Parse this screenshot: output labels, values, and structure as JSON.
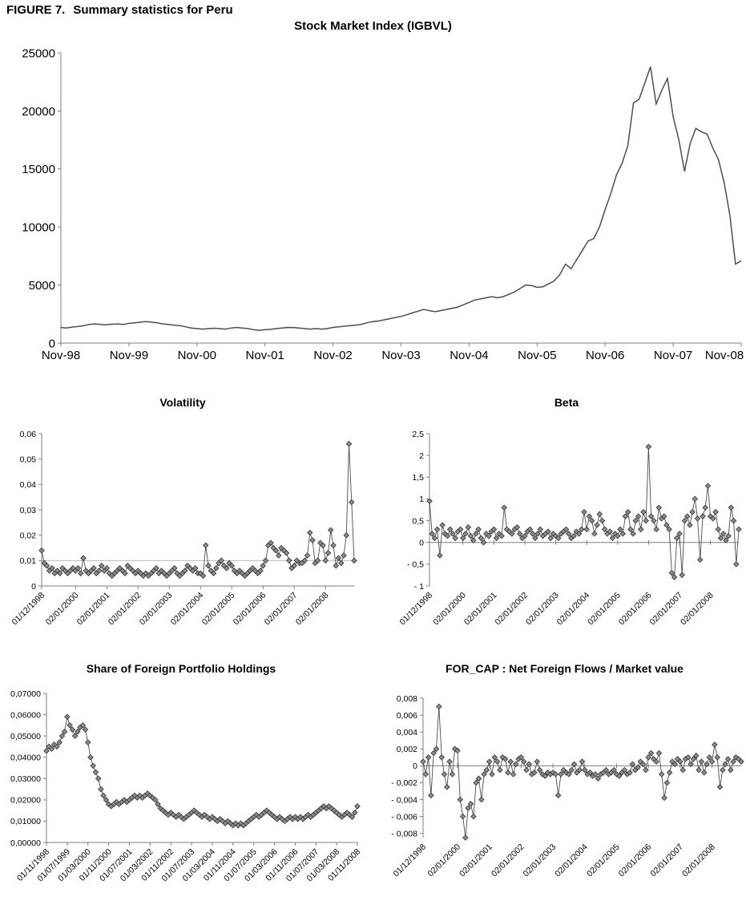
{
  "figure": {
    "caption_label": "FIGURE 7.",
    "caption_title": "Summary statistics for Peru"
  },
  "colors": {
    "line": "#4d4d4d",
    "marker_fill": "#8c8c8c",
    "marker_stroke": "#333333",
    "axis": "#7f7f7f",
    "gridline": "#b0b0b0",
    "text": "#000000"
  },
  "chart_data": [
    {
      "id": "stock-market-index",
      "type": "line",
      "title": "Stock Market Index (IGBVL)",
      "marker": "none",
      "ylim": [
        0,
        25000
      ],
      "y_ticks": [
        0,
        5000,
        10000,
        15000,
        20000,
        25000
      ],
      "y_tick_labels": [
        "0",
        "5000",
        "10000",
        "15000",
        "20000",
        "25000"
      ],
      "x_tick_labels": [
        "Nov-98",
        "Nov-99",
        "Nov-00",
        "Nov-01",
        "Nov-02",
        "Nov-03",
        "Nov-04",
        "Nov-05",
        "Nov-06",
        "Nov-07",
        "Nov-08"
      ],
      "x_tick_indices": [
        0,
        12,
        24,
        36,
        48,
        60,
        72,
        84,
        96,
        108,
        120
      ],
      "values": [
        1350,
        1300,
        1380,
        1420,
        1500,
        1600,
        1650,
        1600,
        1580,
        1620,
        1650,
        1600,
        1700,
        1750,
        1800,
        1850,
        1800,
        1750,
        1650,
        1600,
        1550,
        1500,
        1400,
        1300,
        1250,
        1200,
        1250,
        1280,
        1250,
        1200,
        1300,
        1350,
        1300,
        1250,
        1150,
        1100,
        1150,
        1180,
        1250,
        1300,
        1350,
        1340,
        1300,
        1250,
        1200,
        1250,
        1200,
        1250,
        1350,
        1400,
        1450,
        1500,
        1550,
        1620,
        1750,
        1850,
        1900,
        2000,
        2100,
        2200,
        2300,
        2435,
        2600,
        2750,
        2900,
        2800,
        2700,
        2800,
        2900,
        3000,
        3100,
        3300,
        3500,
        3710,
        3800,
        3900,
        4000,
        3900,
        4000,
        4200,
        4400,
        4700,
        5000,
        4950,
        4800,
        4850,
        5100,
        5350,
        5900,
        6800,
        6400,
        7200,
        8000,
        8800,
        9000,
        10000,
        11500,
        12884,
        14500,
        15500,
        17000,
        20700,
        21000,
        22400,
        23800,
        20600,
        21800,
        22800,
        19500,
        17500,
        14800,
        17200,
        18500,
        18200,
        18000,
        16800,
        15800,
        13800,
        11000,
        6800,
        7100
      ]
    },
    {
      "id": "volatility",
      "type": "line",
      "title": "Volatility",
      "marker": "diamond",
      "ylim": [
        0,
        0.06
      ],
      "gridlines": [
        0.01
      ],
      "y_ticks": [
        0,
        0.01,
        0.02,
        0.03,
        0.04,
        0.05,
        0.06
      ],
      "y_tick_labels": [
        "0",
        "0,01",
        "0,02",
        "0,03",
        "0,04",
        "0,05",
        "0,06"
      ],
      "x_tick_labels": [
        "01/12/1998",
        "02/01/2000",
        "02/01/2001",
        "02/01/2002",
        "02/01/2003",
        "02/01/2004",
        "02/01/2005",
        "02/01/2006",
        "02/01/2007",
        "02/01/2008"
      ],
      "x_tick_indices": [
        0,
        13,
        25,
        37,
        49,
        61,
        73,
        85,
        97,
        109
      ],
      "values": [
        0.014,
        0.009,
        0.008,
        0.006,
        0.007,
        0.005,
        0.006,
        0.005,
        0.007,
        0.006,
        0.005,
        0.006,
        0.007,
        0.006,
        0.007,
        0.005,
        0.011,
        0.006,
        0.005,
        0.006,
        0.007,
        0.005,
        0.006,
        0.008,
        0.006,
        0.007,
        0.005,
        0.004,
        0.005,
        0.006,
        0.007,
        0.006,
        0.005,
        0.008,
        0.007,
        0.006,
        0.005,
        0.006,
        0.005,
        0.004,
        0.005,
        0.004,
        0.005,
        0.006,
        0.007,
        0.005,
        0.006,
        0.005,
        0.004,
        0.005,
        0.006,
        0.007,
        0.005,
        0.004,
        0.005,
        0.006,
        0.008,
        0.007,
        0.006,
        0.007,
        0.005,
        0.005,
        0.004,
        0.016,
        0.008,
        0.006,
        0.005,
        0.007,
        0.009,
        0.01,
        0.008,
        0.007,
        0.009,
        0.008,
        0.006,
        0.005,
        0.006,
        0.005,
        0.004,
        0.005,
        0.006,
        0.007,
        0.006,
        0.005,
        0.006,
        0.008,
        0.01,
        0.016,
        0.017,
        0.015,
        0.014,
        0.012,
        0.015,
        0.014,
        0.013,
        0.01,
        0.007,
        0.008,
        0.01,
        0.009,
        0.009,
        0.01,
        0.012,
        0.021,
        0.018,
        0.009,
        0.01,
        0.017,
        0.016,
        0.01,
        0.013,
        0.022,
        0.016,
        0.008,
        0.011,
        0.009,
        0.012,
        0.02,
        0.056,
        0.033,
        0.01
      ]
    },
    {
      "id": "beta",
      "type": "line",
      "title": "Beta",
      "marker": "diamond",
      "ylim": [
        -1,
        2.5
      ],
      "x_axis_at": 0,
      "y_ticks": [
        -1,
        -0.5,
        0,
        0.5,
        1,
        1.5,
        2,
        2.5
      ],
      "y_tick_labels": [
        "- 1",
        "- 0,5",
        "0",
        "0,5",
        "1",
        "1,5",
        "2",
        "2,5"
      ],
      "x_tick_labels": [
        "01/12/1998",
        "02/01/2000",
        "02/01/2001",
        "02/01/2002",
        "02/01/2003",
        "02/01/2004",
        "02/01/2005",
        "02/01/2006",
        "02/01/2007",
        "02/01/2008"
      ],
      "x_tick_indices": [
        0,
        13,
        25,
        37,
        49,
        61,
        73,
        85,
        97,
        109
      ],
      "values": [
        0.95,
        0.2,
        0.1,
        0.3,
        -0.3,
        0.4,
        0.2,
        0.15,
        0.3,
        0.2,
        0.1,
        0.25,
        0.3,
        0.1,
        0.2,
        0.35,
        0.15,
        0.05,
        0.2,
        0.3,
        0.1,
        0.0,
        0.2,
        0.15,
        0.25,
        0.3,
        0.1,
        0.2,
        0.15,
        0.8,
        0.3,
        0.25,
        0.2,
        0.3,
        0.35,
        0.2,
        0.1,
        0.15,
        0.25,
        0.3,
        0.2,
        0.1,
        0.2,
        0.3,
        0.15,
        0.2,
        0.25,
        0.1,
        0.2,
        0.15,
        0.1,
        0.2,
        0.25,
        0.3,
        0.2,
        0.1,
        0.15,
        0.25,
        0.2,
        0.3,
        0.7,
        0.3,
        0.6,
        0.5,
        0.2,
        0.4,
        0.65,
        0.5,
        0.3,
        0.2,
        0.25,
        0.1,
        0.2,
        0.15,
        0.3,
        0.2,
        0.6,
        0.7,
        0.3,
        0.2,
        0.5,
        0.6,
        0.3,
        0.7,
        0.5,
        2.2,
        0.6,
        0.5,
        0.3,
        0.8,
        0.55,
        0.6,
        0.4,
        0.3,
        -0.7,
        -0.8,
        0.1,
        0.2,
        -0.75,
        0.5,
        0.6,
        0.4,
        0.7,
        1.0,
        0.55,
        -0.4,
        0.6,
        0.8,
        1.3,
        0.6,
        0.55,
        0.7,
        0.3,
        0.1,
        0.2,
        0.05,
        0.15,
        0.8,
        0.5,
        -0.5,
        0.3
      ]
    },
    {
      "id": "foreign-portfolio-share",
      "type": "line",
      "title": "Share of Foreign Portfolio Holdings",
      "marker": "diamond",
      "ylim": [
        0,
        0.07
      ],
      "y_ticks": [
        0,
        0.01,
        0.02,
        0.03,
        0.04,
        0.05,
        0.06,
        0.07
      ],
      "y_tick_labels": [
        "0,00000",
        "0,01000",
        "0,02000",
        "0,03000",
        "0,04000",
        "0,05000",
        "0,06000",
        "0,07000"
      ],
      "x_tick_labels": [
        "01/11/1998",
        "01/07/1999",
        "01/03/2000",
        "01/11/2000",
        "01/07/2001",
        "01/03/2002",
        "01/11/2002",
        "01/07/2003",
        "01/03/2004",
        "01/11/2004",
        "01/07/2005",
        "01/03/2006",
        "01/11/2006",
        "01/07/2007",
        "01/03/2008",
        "01/11/2008"
      ],
      "x_tick_indices": [
        0,
        8,
        16,
        24,
        32,
        40,
        48,
        56,
        64,
        72,
        80,
        88,
        96,
        104,
        112,
        120
      ],
      "values": [
        0.043,
        0.045,
        0.044,
        0.046,
        0.045,
        0.047,
        0.05,
        0.052,
        0.059,
        0.055,
        0.053,
        0.05,
        0.052,
        0.054,
        0.055,
        0.053,
        0.047,
        0.04,
        0.036,
        0.033,
        0.03,
        0.025,
        0.022,
        0.02,
        0.018,
        0.017,
        0.018,
        0.019,
        0.018,
        0.019,
        0.02,
        0.019,
        0.02,
        0.021,
        0.022,
        0.021,
        0.022,
        0.021,
        0.022,
        0.023,
        0.022,
        0.021,
        0.02,
        0.018,
        0.016,
        0.015,
        0.014,
        0.013,
        0.014,
        0.013,
        0.012,
        0.013,
        0.012,
        0.011,
        0.012,
        0.013,
        0.014,
        0.015,
        0.014,
        0.013,
        0.012,
        0.013,
        0.012,
        0.011,
        0.012,
        0.011,
        0.01,
        0.011,
        0.01,
        0.009,
        0.01,
        0.009,
        0.008,
        0.009,
        0.008,
        0.009,
        0.008,
        0.009,
        0.01,
        0.011,
        0.012,
        0.013,
        0.012,
        0.013,
        0.014,
        0.015,
        0.014,
        0.013,
        0.012,
        0.011,
        0.012,
        0.011,
        0.01,
        0.011,
        0.012,
        0.011,
        0.012,
        0.011,
        0.012,
        0.011,
        0.012,
        0.013,
        0.012,
        0.013,
        0.014,
        0.015,
        0.016,
        0.017,
        0.016,
        0.017,
        0.016,
        0.015,
        0.014,
        0.013,
        0.012,
        0.013,
        0.014,
        0.013,
        0.012,
        0.014,
        0.017
      ]
    },
    {
      "id": "for-cap",
      "type": "line",
      "title": "FOR_CAP : Net Foreign Flows / Market value",
      "marker": "diamond",
      "ylim": [
        -0.0085,
        0.008
      ],
      "x_axis_at": 0,
      "y_ticks": [
        -0.008,
        -0.006,
        -0.004,
        -0.002,
        0,
        0.002,
        0.004,
        0.006,
        0.008
      ],
      "y_tick_labels": [
        "- 0,008",
        "- 0,006",
        "- 0,004",
        "- 0,002",
        "0",
        "0,002",
        "0,004",
        "0,006",
        "0,008"
      ],
      "x_tick_labels": [
        "01/12/1998",
        "02/01/2000",
        "02/01/2001",
        "02/01/2002",
        "02/01/2003",
        "02/01/2004",
        "02/01/2005",
        "02/01/2006",
        "02/01/2007",
        "02/01/2008"
      ],
      "x_tick_indices": [
        0,
        13,
        25,
        37,
        49,
        61,
        73,
        85,
        97,
        109
      ],
      "values": [
        0.0005,
        -0.001,
        0.001,
        -0.0035,
        0.0015,
        0.002,
        0.007,
        0.001,
        -0.001,
        -0.0025,
        0.0005,
        -0.001,
        0.002,
        0.0018,
        -0.004,
        -0.006,
        -0.0085,
        -0.005,
        -0.0045,
        -0.006,
        -0.002,
        -0.0015,
        -0.004,
        -0.001,
        -0.0005,
        0.0005,
        -0.001,
        0.001,
        0.0005,
        -0.0005,
        0.001,
        0.0008,
        -0.0008,
        0.0005,
        -0.001,
        0.0002,
        0.0008,
        0.001,
        0.0005,
        -0.0005,
        0.0002,
        -0.001,
        -0.0008,
        0.0005,
        -0.0005,
        -0.001,
        -0.0012,
        -0.0008,
        -0.001,
        -0.0008,
        -0.001,
        -0.0035,
        -0.001,
        -0.0005,
        -0.0008,
        -0.001,
        -0.0005,
        0.0002,
        -0.0008,
        -0.0005,
        0.0005,
        -0.0005,
        -0.001,
        -0.0008,
        -0.0012,
        -0.001,
        -0.0015,
        -0.001,
        -0.0008,
        -0.0005,
        -0.001,
        -0.0008,
        -0.0005,
        -0.001,
        -0.0012,
        -0.0008,
        -0.0005,
        -0.001,
        -0.0008,
        0.0002,
        -0.0005,
        -0.0002,
        0.0005,
        0.0002,
        -0.0005,
        0.001,
        0.0015,
        0.0008,
        0.0005,
        0.0015,
        -0.001,
        -0.0038,
        -0.002,
        -0.0008,
        0.0005,
        0.0002,
        0.0008,
        0.0005,
        -0.0005,
        0.0008,
        0.001,
        0.0002,
        0.0008,
        0.0012,
        -0.0005,
        0.0005,
        -0.0008,
        0.0002,
        0.001,
        0.0005,
        0.0025,
        0.001,
        -0.0025,
        -0.0005,
        0.0002,
        0.0008,
        -0.0005,
        0.0005,
        0.001,
        0.0008,
        0.0005
      ]
    }
  ]
}
